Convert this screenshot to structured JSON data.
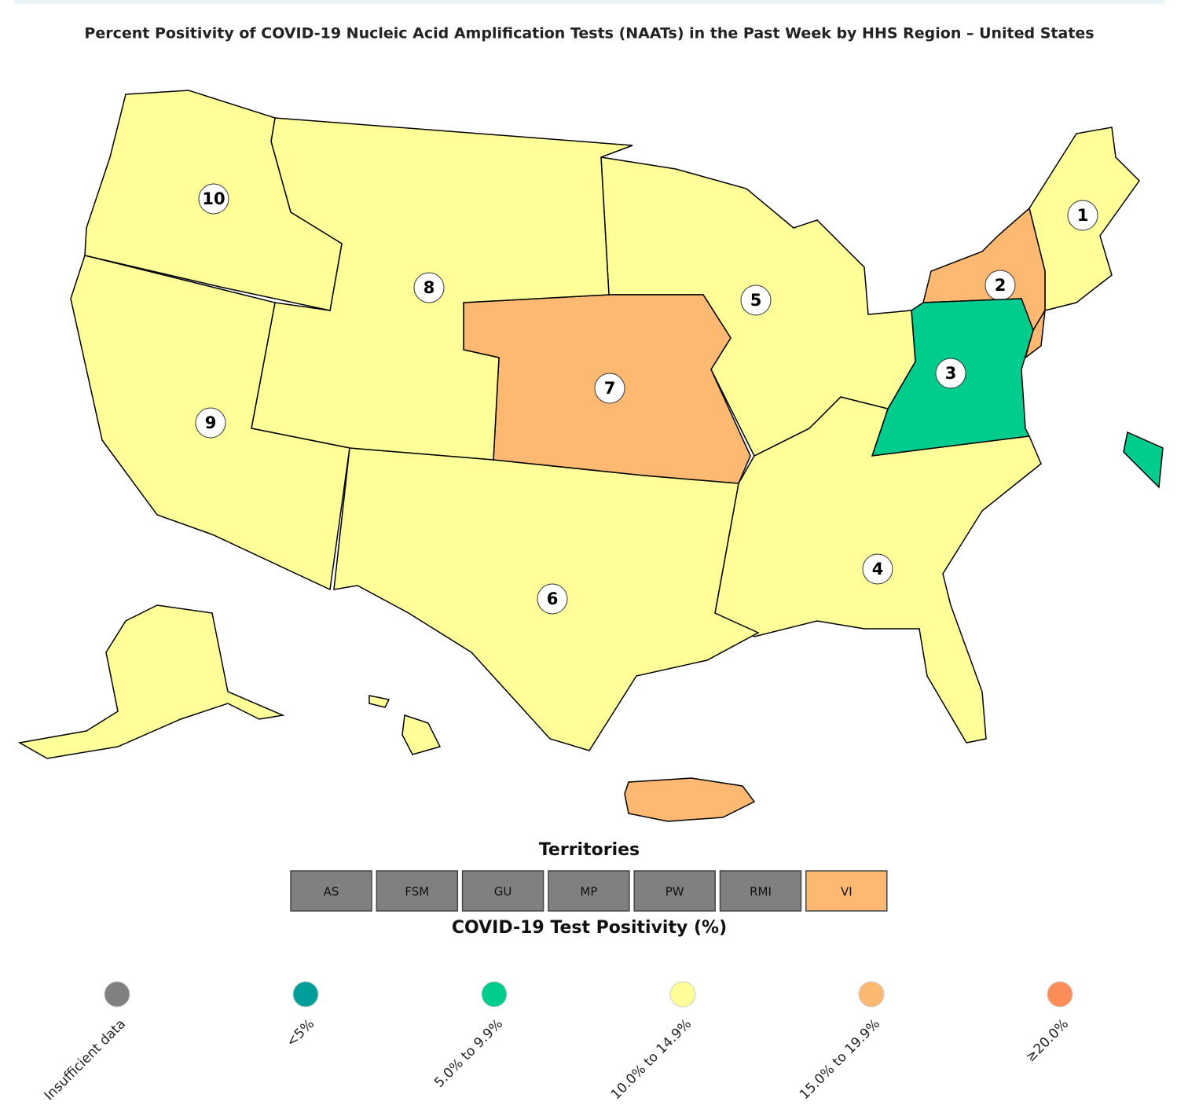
{
  "title": "Percent Positivity of COVID-19 Nucleic Acid Amplification Tests (NAATs) in the Past Week by HHS Region – United States",
  "regions": [
    {
      "label": "1",
      "color": "#ffff99"
    },
    {
      "label": "2",
      "color": "#fdb871"
    },
    {
      "label": "3",
      "color": "#00cc8e"
    },
    {
      "label": "4",
      "color": "#ffff99"
    },
    {
      "label": "5",
      "color": "#ffff99"
    },
    {
      "label": "6",
      "color": "#ffff99"
    },
    {
      "label": "7",
      "color": "#fdb871"
    },
    {
      "label": "8",
      "color": "#ffff99"
    },
    {
      "label": "9",
      "color": "#ffff99"
    },
    {
      "label": "10",
      "color": "#ffff99"
    }
  ],
  "territories_title": "Territories",
  "territories": [
    {
      "name": "AS",
      "color": "#808080"
    },
    {
      "name": "FSM",
      "color": "#808080"
    },
    {
      "name": "GU",
      "color": "#808080"
    },
    {
      "name": "MP",
      "color": "#808080"
    },
    {
      "name": "PW",
      "color": "#808080"
    },
    {
      "name": "RMI",
      "color": "#808080"
    },
    {
      "name": "VI",
      "color": "#fdb871"
    }
  ],
  "legend_title": "COVID-19 Test Positivity (%)",
  "legend": [
    {
      "label": "Insufficient data",
      "color": "#808080"
    },
    {
      "label": "<5%",
      "color": "#009e9a"
    },
    {
      "label": "5.0% to 9.9%",
      "color": "#00cc8e"
    },
    {
      "label": "10.0% to 14.9%",
      "color": "#ffff99"
    },
    {
      "label": "15.0% to 19.9%",
      "color": "#fdb871"
    },
    {
      "label": "≥20.0%",
      "color": "#fc8d59"
    }
  ]
}
